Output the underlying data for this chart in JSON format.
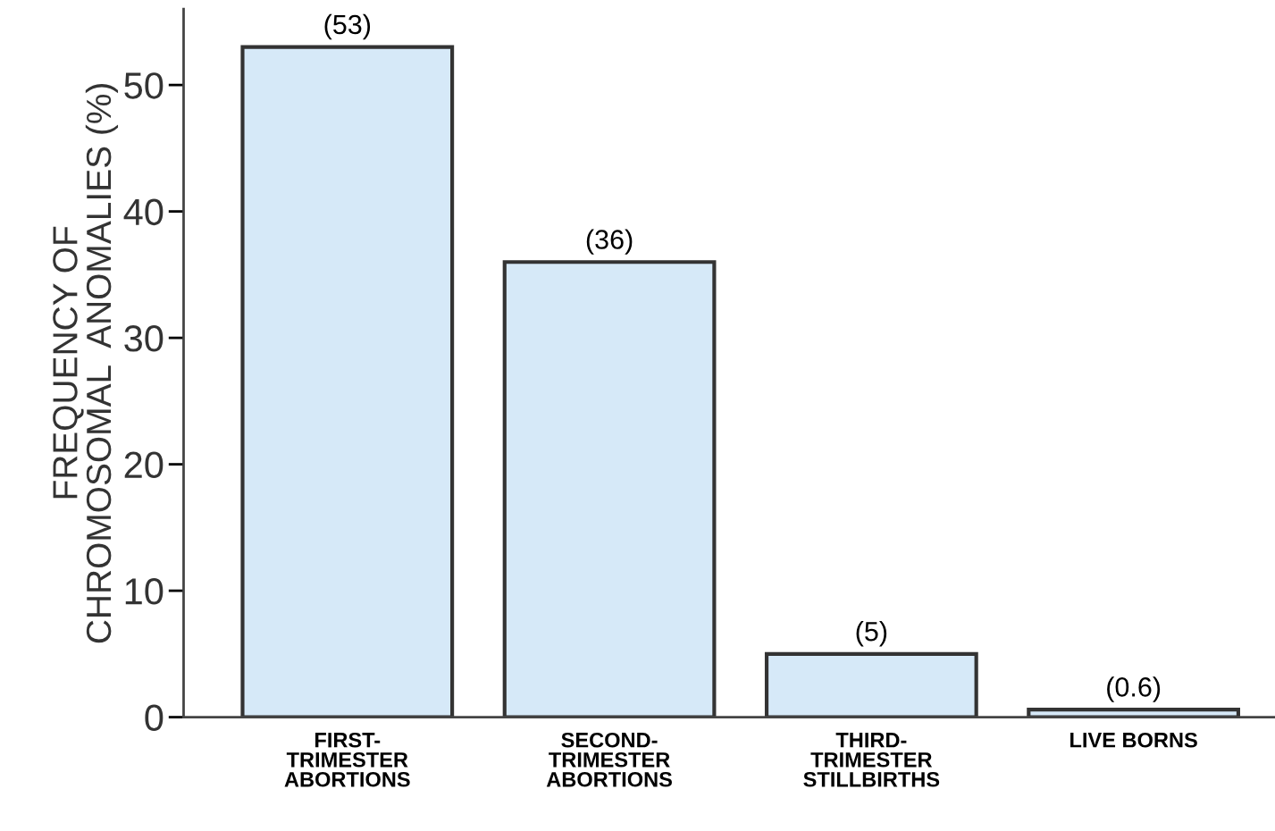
{
  "chart_data": {
    "type": "bar",
    "ylabel": "FREQUENCY OF\nCHROMOSOMAL  ANOMALIES (%)",
    "categories": [
      "FIRST-\nTRIMESTER\nABORTIONS",
      "SECOND-\nTRIMESTER\nABORTIONS",
      "THIRD-\nTRIMESTER\nSTILLBIRTHS",
      "LIVE BORNS"
    ],
    "values": [
      53,
      36,
      5,
      0.6
    ],
    "value_labels": [
      "(53)",
      "(36)",
      "(5)",
      "(0.6)"
    ],
    "color": "#d6e9f8",
    "ylim": [
      0,
      56
    ],
    "yticks": [
      0,
      10,
      20,
      30,
      40,
      50
    ],
    "grid": false
  }
}
